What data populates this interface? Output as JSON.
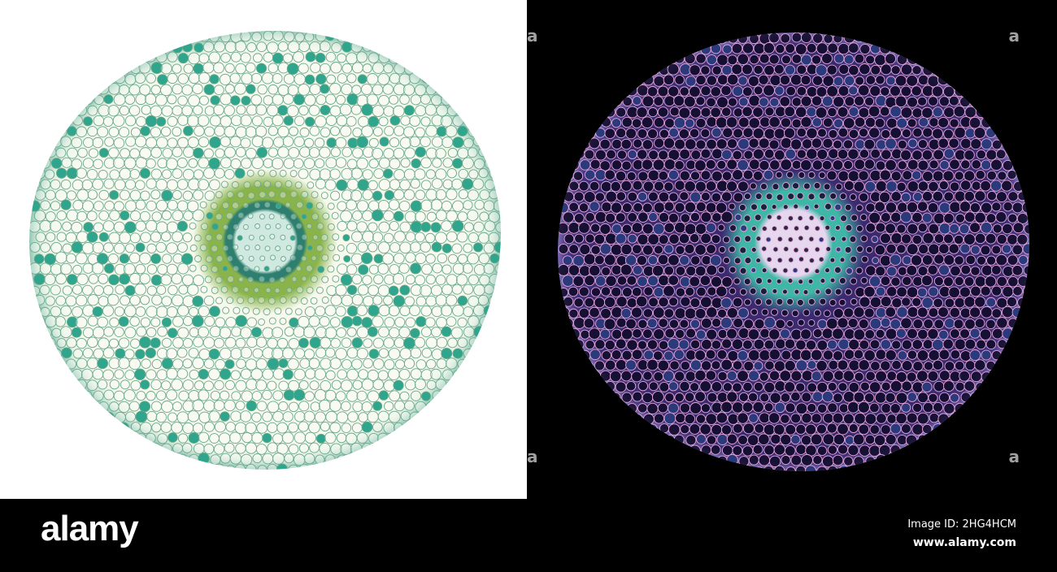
{
  "image": {
    "description_colors": {
      "left_background": "#ffffff",
      "right_background": "#000000",
      "stain_left": "#2f9f86",
      "stain_right": "#4a3e92"
    },
    "watermark_text": "alamy"
  },
  "footer": {
    "logo": "alamy",
    "image_id": "Image ID: 2HG4HCM",
    "website": "www.alamy.com"
  }
}
